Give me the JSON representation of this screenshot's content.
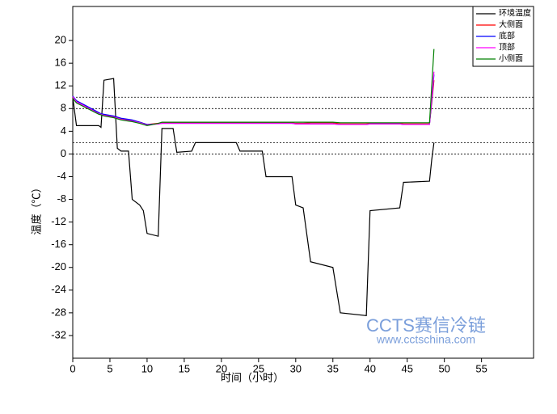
{
  "chart_data": {
    "type": "line",
    "xlabel": "时间（小时）",
    "ylabel": "温度（℃）",
    "xlim": [
      0,
      62
    ],
    "xticks": [
      0,
      5,
      10,
      15,
      20,
      25,
      30,
      35,
      40,
      45,
      50,
      55
    ],
    "ylim": [
      -36,
      26
    ],
    "yticks": [
      20,
      16,
      12,
      8,
      4,
      0,
      -4,
      -8,
      -12,
      -16,
      -20,
      -24,
      -28,
      -32
    ],
    "reference_lines": [
      10,
      8,
      2,
      0
    ],
    "legend": "upper right",
    "watermark": [
      "CCTS赛信冷链",
      "www.cctschina.com"
    ],
    "x": [
      0,
      0.5,
      3.5,
      3.8,
      4.2,
      5.5,
      6,
      6.5,
      7.5,
      8,
      9,
      9.5,
      10,
      11.5,
      12,
      13.5,
      14,
      16,
      16.5,
      22,
      22.5,
      25.5,
      26,
      29.5,
      30,
      31,
      32,
      35,
      36,
      39.5,
      40,
      44,
      44.5,
      48,
      48.3,
      48.6
    ],
    "series": [
      {
        "name": "环境温度",
        "color": "#000000",
        "values": [
          10,
          5,
          5,
          4.7,
          13,
          13.3,
          1,
          0.5,
          0.5,
          -8,
          -9,
          -10,
          -14,
          -14.5,
          4.5,
          4.5,
          0.3,
          0.5,
          2,
          2,
          0.5,
          0.5,
          -4,
          -4,
          -9,
          -9.5,
          -19,
          -20,
          -28,
          -28.5,
          -10,
          -9.5,
          -5,
          -4.8,
          -1,
          2
        ]
      },
      {
        "name": "大侧面",
        "color": "#ff0000",
        "values": [
          10,
          9.3,
          7.2,
          7,
          6.9,
          6.6,
          6.4,
          6.2,
          6,
          5.9,
          5.6,
          5.4,
          5.2,
          5.4,
          5.5,
          5.5,
          5.5,
          5.5,
          5.5,
          5.5,
          5.5,
          5.5,
          5.5,
          5.5,
          5.4,
          5.4,
          5.5,
          5.5,
          5.3,
          5.3,
          5.4,
          5.4,
          5.3,
          5.3,
          9,
          13
        ]
      },
      {
        "name": "底部",
        "color": "#0000ff",
        "values": [
          10.2,
          9.4,
          7.3,
          7.1,
          7,
          6.7,
          6.5,
          6.3,
          6.1,
          6,
          5.6,
          5.4,
          5.2,
          5.3,
          5.4,
          5.4,
          5.4,
          5.4,
          5.4,
          5.4,
          5.4,
          5.4,
          5.4,
          5.4,
          5.3,
          5.3,
          5.3,
          5.3,
          5.2,
          5.2,
          5.3,
          5.3,
          5.2,
          5.2,
          9.5,
          14
        ]
      },
      {
        "name": "顶部",
        "color": "#ff00ff",
        "values": [
          10.1,
          9.2,
          7.1,
          7,
          6.8,
          6.5,
          6.3,
          6.1,
          5.9,
          5.8,
          5.5,
          5.3,
          5.1,
          5.3,
          5.4,
          5.4,
          5.4,
          5.4,
          5.4,
          5.4,
          5.4,
          5.4,
          5.4,
          5.4,
          5.3,
          5.3,
          5.3,
          5.3,
          5.2,
          5.2,
          5.3,
          5.3,
          5.2,
          5.2,
          10,
          14.5
        ]
      },
      {
        "name": "小侧面",
        "color": "#008000",
        "values": [
          9.8,
          9,
          7,
          6.9,
          6.7,
          6.4,
          6.2,
          6,
          5.8,
          5.7,
          5.4,
          5.2,
          5,
          5.4,
          5.6,
          5.6,
          5.6,
          5.6,
          5.6,
          5.6,
          5.6,
          5.6,
          5.6,
          5.6,
          5.6,
          5.6,
          5.6,
          5.6,
          5.5,
          5.5,
          5.5,
          5.5,
          5.5,
          5.5,
          12,
          18.5
        ]
      }
    ]
  }
}
